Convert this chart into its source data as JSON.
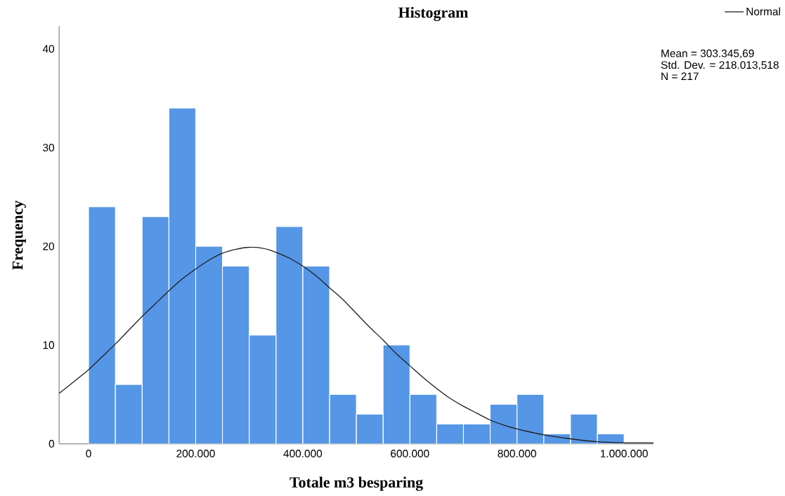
{
  "chart_data": {
    "type": "histogram",
    "title": "Histogram",
    "xlabel": "Totale m3 besparing",
    "ylabel": "Frequency",
    "bins": [
      0,
      50000,
      100000,
      150000,
      200000,
      250000,
      300000,
      350000,
      400000,
      450000,
      500000,
      550000,
      600000,
      650000,
      700000,
      750000,
      800000,
      850000,
      900000,
      950000,
      1000000
    ],
    "values": [
      24,
      6,
      23,
      34,
      20,
      18,
      11,
      22,
      18,
      5,
      3,
      10,
      5,
      2,
      2,
      4,
      5,
      1,
      3,
      1
    ],
    "color": "#5596e6",
    "series": [
      {
        "name": "Normal",
        "type": "line",
        "color": "#1f1f1f",
        "x": [
          -55000,
          -25000,
          0,
          25000,
          50000,
          75000,
          100000,
          125000,
          150000,
          175000,
          200000,
          225000,
          250000,
          275000,
          300000,
          325000,
          350000,
          375000,
          400000,
          425000,
          450000,
          475000,
          500000,
          525000,
          550000,
          575000,
          600000,
          625000,
          650000,
          675000,
          700000,
          725000,
          750000,
          775000,
          800000,
          850000,
          900000,
          950000,
          1000000,
          1055000
        ],
        "values": [
          5.1,
          6.4,
          7.5,
          8.8,
          10.1,
          11.5,
          12.9,
          14.2,
          15.5,
          16.7,
          17.7,
          18.6,
          19.3,
          19.7,
          19.9,
          19.8,
          19.4,
          18.8,
          18.0,
          17.0,
          15.8,
          14.6,
          13.2,
          11.8,
          10.5,
          9.1,
          7.9,
          6.7,
          5.6,
          4.6,
          3.8,
          3.1,
          2.4,
          1.9,
          1.5,
          0.9,
          0.5,
          0.2,
          0.1,
          0.1
        ]
      }
    ],
    "xlim": [
      -55000,
      1055000
    ],
    "ylim": [
      0,
      42.3
    ],
    "xticks": [
      0,
      {
        "value": 200000,
        "label": "200.000"
      },
      {
        "value": 400000,
        "label": "400.000"
      },
      {
        "value": 600000,
        "label": "600.000"
      },
      {
        "value": 800000,
        "label": "800.000"
      },
      {
        "value": 1000000,
        "label": "1.000.000"
      }
    ],
    "yticks": [
      0,
      10,
      20,
      30,
      40
    ],
    "legend": "top right",
    "annotations": [
      "Mean = 303.345,69",
      "Std. Dev. = 218.013,518",
      "N = 217"
    ]
  }
}
